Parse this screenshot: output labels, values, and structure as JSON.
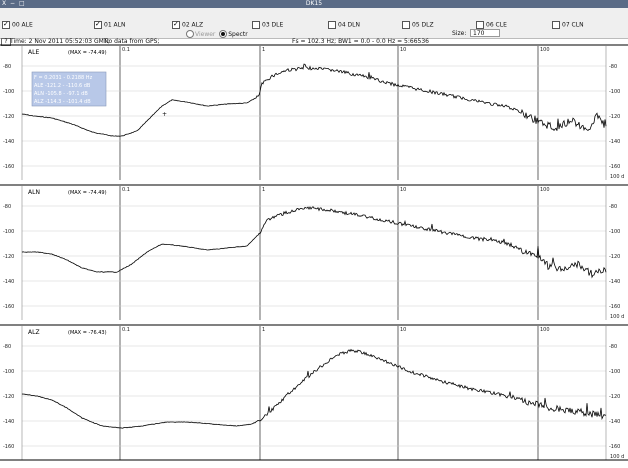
{
  "window": {
    "title": "DK15",
    "controls": "X − □"
  },
  "channels": [
    {
      "label": "00 ALE",
      "checked": true
    },
    {
      "label": "01 ALN",
      "checked": true
    },
    {
      "label": "02 ALZ",
      "checked": true
    },
    {
      "label": "03 DLE",
      "checked": false
    },
    {
      "label": "04 DLN",
      "checked": false
    },
    {
      "label": "05 DLZ",
      "checked": false
    },
    {
      "label": "06 CLE",
      "checked": false
    },
    {
      "label": "07 CLN",
      "checked": false
    }
  ],
  "mode": {
    "options": [
      "Viewer",
      "Spectr"
    ],
    "selected": "Spectr"
  },
  "size": {
    "label": "Size:",
    "value": "170"
  },
  "help_button": "?",
  "info": {
    "time": "Time: 2 Nov 2011 05:52:03 GMT;",
    "gps": "No data from GPS;",
    "params": "Fs = 102.3 Hz; BW1 = 0.0 - 0.0 Hz = 5:66536"
  },
  "panels": [
    {
      "name": "ALE",
      "max": "(MAX = -74.49)",
      "y_ticks_left": [
        "-80",
        "-100",
        "-120",
        "-140",
        "-160"
      ],
      "y_ticks_right": [
        "-80",
        "-100",
        "-120",
        "-140",
        "-160"
      ],
      "freq_label": "100 d"
    },
    {
      "name": "ALN",
      "max": "(MAX = -74.49)",
      "y_ticks_left": [
        "-80",
        "-100",
        "-120",
        "-140",
        "-160"
      ],
      "y_ticks_right": [
        "-80",
        "-100",
        "-120",
        "-140",
        "-160"
      ],
      "freq_label": "100 d"
    },
    {
      "name": "ALZ",
      "max": "(MAX = -76.43)",
      "y_ticks_left": [
        "-80",
        "-100",
        "-120",
        "-140",
        "-160"
      ],
      "y_ticks_right": [
        "-80",
        "-100",
        "-120",
        "-140",
        "-160"
      ],
      "freq_label": "100 d"
    }
  ],
  "x_decades": [
    "0.1",
    "1",
    "10",
    "100"
  ],
  "tooltip": [
    "F = 0.2031 - 0.2188 Hz",
    "ALE -121.2 - -110.6 dB",
    "ALN -105.8 - -97.1 dB",
    "ALZ -114.3 - -101.4 dB"
  ],
  "colors": {
    "titlebar": "#5a6b86",
    "tooltip": "#b8c8e8",
    "grid": "#c8c8c8",
    "trace": "#000000"
  }
}
